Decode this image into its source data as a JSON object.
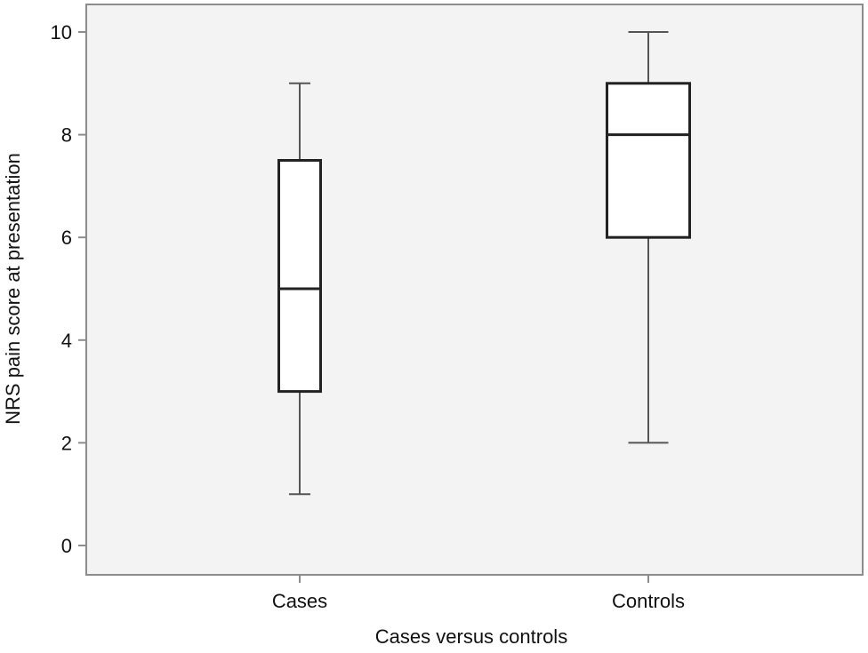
{
  "chart_data": {
    "type": "boxplot",
    "title": "",
    "xlabel": "Cases versus controls",
    "ylabel": "NRS pain score at presentation",
    "categories": [
      "Cases",
      "Controls"
    ],
    "ylim": [
      0,
      10
    ],
    "yticks": [
      0,
      2,
      4,
      6,
      8,
      10
    ],
    "grid": false,
    "legend": null,
    "series": [
      {
        "name": "Cases",
        "min": 1,
        "q1": 3,
        "median": 5,
        "q3": 7.5,
        "max": 9
      },
      {
        "name": "Controls",
        "min": 2,
        "q1": 6,
        "median": 8,
        "q3": 9,
        "max": 10
      }
    ],
    "colors": {
      "plot_bg": "#f3f3f3",
      "axis": "#8c8c8c",
      "box_fill": "#ffffff",
      "box_stroke": "#222222",
      "whisker": "#555555"
    }
  }
}
